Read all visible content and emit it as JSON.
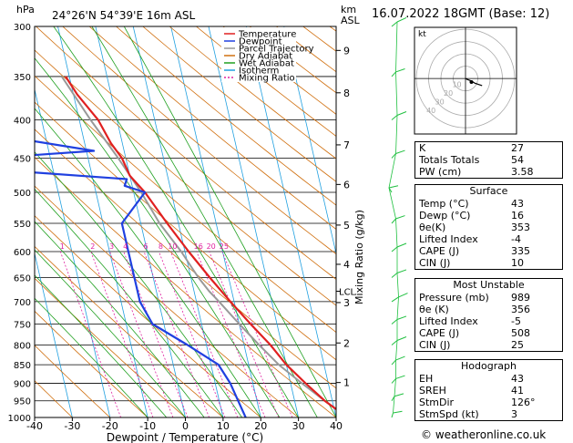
{
  "header": {
    "hpa_label": "hPa",
    "location": "24°26'N  54°39'E  16m  ASL",
    "km_label": "km",
    "asl_label": "ASL",
    "date": "16.07.2022  18GMT  (Base: 12)"
  },
  "chart_data": {
    "type": "skew-t",
    "xlabel": "Dewpoint / Temperature (°C)",
    "ylabel_left": "hPa",
    "ylabel_right": "Mixing Ratio (g/kg)",
    "xlim": [
      -40,
      40
    ],
    "ylim": [
      1000,
      300
    ],
    "x_ticks": [
      -40,
      -30,
      -20,
      -10,
      0,
      10,
      20,
      30,
      40
    ],
    "pressure_levels": [
      300,
      350,
      400,
      450,
      500,
      550,
      600,
      650,
      700,
      750,
      800,
      850,
      900,
      950,
      1000
    ],
    "km_ticks": [
      {
        "label": "9",
        "p": 323
      },
      {
        "label": "8",
        "p": 368
      },
      {
        "label": "7",
        "p": 432
      },
      {
        "label": "6",
        "p": 488
      },
      {
        "label": "5",
        "p": 553
      },
      {
        "label": "4",
        "p": 624
      },
      {
        "label": "3",
        "p": 702
      },
      {
        "label": "2",
        "p": 795
      },
      {
        "label": "1",
        "p": 898
      }
    ],
    "lcl": {
      "label": "LCL",
      "p": 678
    },
    "mixing_ratio_labels": [
      "1",
      "2",
      "3",
      "4",
      "6",
      "8",
      "10",
      "16",
      "20",
      "25"
    ],
    "legend": [
      {
        "name": "Temperature",
        "color": "#e02020"
      },
      {
        "name": "Dewpoint",
        "color": "#2040e0"
      },
      {
        "name": "Parcel Trajectory",
        "color": "#999999"
      },
      {
        "name": "Dry Adiabat",
        "color": "#d07010"
      },
      {
        "name": "Wet Adiabat",
        "color": "#20a020"
      },
      {
        "name": "Isotherm",
        "color": "#20a0e0"
      },
      {
        "name": "Mixing Ratio",
        "color": "#e020a0"
      }
    ],
    "temperature": [
      [
        1000,
        43
      ],
      [
        950,
        38
      ],
      [
        900,
        34
      ],
      [
        850,
        30
      ],
      [
        800,
        27
      ],
      [
        750,
        23
      ],
      [
        700,
        19
      ],
      [
        650,
        15
      ],
      [
        600,
        11
      ],
      [
        550,
        7
      ],
      [
        500,
        3
      ],
      [
        475,
        0
      ],
      [
        450,
        -1
      ],
      [
        430,
        -3
      ],
      [
        400,
        -5
      ],
      [
        370,
        -9
      ],
      [
        350,
        -11
      ]
    ],
    "dewpoint": [
      [
        1000,
        16
      ],
      [
        950,
        15
      ],
      [
        900,
        14
      ],
      [
        850,
        12
      ],
      [
        800,
        5
      ],
      [
        750,
        -3
      ],
      [
        700,
        -5
      ],
      [
        650,
        -5
      ],
      [
        600,
        -5
      ],
      [
        550,
        -5
      ],
      [
        500,
        3
      ],
      [
        490,
        -2
      ],
      [
        480,
        -1
      ],
      [
        470,
        -26
      ],
      [
        450,
        -36
      ],
      [
        440,
        -8
      ],
      [
        420,
        -32
      ],
      [
        400,
        -38
      ],
      [
        370,
        -47
      ],
      [
        350,
        -50
      ],
      [
        335,
        -37
      ],
      [
        325,
        -32
      ],
      [
        315,
        -35
      ],
      [
        300,
        -38
      ]
    ],
    "parcel": [
      [
        1000,
        43
      ],
      [
        950,
        38
      ],
      [
        900,
        33
      ],
      [
        850,
        28
      ],
      [
        800,
        24
      ],
      [
        750,
        20
      ],
      [
        700,
        16
      ],
      [
        678,
        14
      ],
      [
        650,
        12
      ],
      [
        600,
        9
      ],
      [
        550,
        5
      ],
      [
        500,
        2
      ],
      [
        450,
        -2
      ],
      [
        400,
        -7
      ],
      [
        350,
        -12
      ]
    ],
    "wind_barbs": [
      {
        "p": 1000,
        "u": 1,
        "v": 2
      },
      {
        "p": 950,
        "u": 2,
        "v": 3
      },
      {
        "p": 900,
        "u": 3,
        "v": 3
      },
      {
        "p": 850,
        "u": 3,
        "v": 4
      },
      {
        "p": 800,
        "u": 4,
        "v": 3
      },
      {
        "p": 750,
        "u": 4,
        "v": 2
      },
      {
        "p": 700,
        "u": 5,
        "v": 2
      },
      {
        "p": 650,
        "u": 4,
        "v": 2
      },
      {
        "p": 600,
        "u": 4,
        "v": 3
      },
      {
        "p": 550,
        "u": 3,
        "v": 3
      },
      {
        "p": 500,
        "u": -2,
        "v": 2
      },
      {
        "p": 450,
        "u": 3,
        "v": 3
      },
      {
        "p": 400,
        "u": 4,
        "v": 3
      },
      {
        "p": 350,
        "u": 3,
        "v": 3
      },
      {
        "p": 300,
        "u": 4,
        "v": 4
      }
    ]
  },
  "hodograph": {
    "unit_label": "kt",
    "ring_labels": [
      "10",
      "20",
      "30",
      "40"
    ],
    "points": [
      [
        0,
        0
      ],
      [
        2,
        -1
      ],
      [
        5,
        -2
      ],
      [
        8,
        -4
      ],
      [
        14,
        -6
      ]
    ],
    "storm_motion": [
      5,
      -3
    ]
  },
  "indices": [
    {
      "label": "K",
      "value": "27"
    },
    {
      "label": "Totals Totals",
      "value": "54"
    },
    {
      "label": "PW (cm)",
      "value": "3.58"
    }
  ],
  "surface": {
    "title": "Surface",
    "rows": [
      {
        "label": "Temp (°C)",
        "value": "43"
      },
      {
        "label": "Dewp (°C)",
        "value": "16"
      },
      {
        "label": "θe(K)",
        "value": "353"
      },
      {
        "label": "Lifted Index",
        "value": "-4"
      },
      {
        "label": "CAPE (J)",
        "value": "335"
      },
      {
        "label": "CIN (J)",
        "value": "10"
      }
    ]
  },
  "most_unstable": {
    "title": "Most Unstable",
    "rows": [
      {
        "label": "Pressure (mb)",
        "value": "989"
      },
      {
        "label": "θe (K)",
        "value": "356"
      },
      {
        "label": "Lifted Index",
        "value": "-5"
      },
      {
        "label": "CAPE (J)",
        "value": "508"
      },
      {
        "label": "CIN (J)",
        "value": "25"
      }
    ]
  },
  "hodograph_panel": {
    "title": "Hodograph",
    "rows": [
      {
        "label": "EH",
        "value": "43"
      },
      {
        "label": "SREH",
        "value": "41"
      },
      {
        "label": "StmDir",
        "value": "126°"
      },
      {
        "label": "StmSpd (kt)",
        "value": "3"
      }
    ]
  },
  "credit": "© weatheronline.co.uk"
}
